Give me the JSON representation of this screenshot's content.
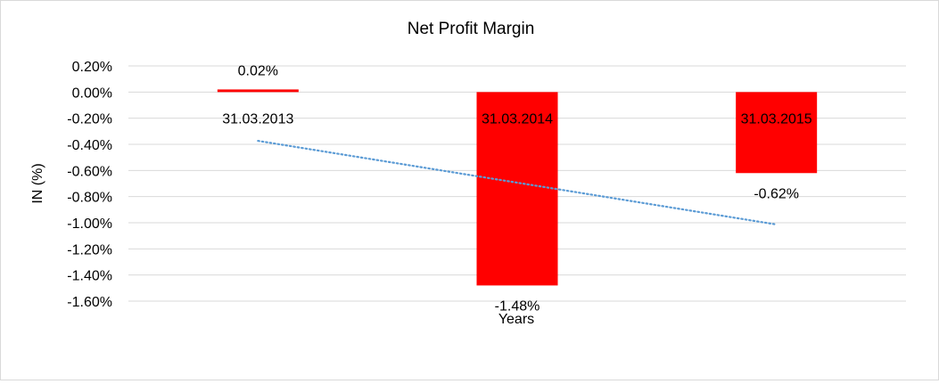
{
  "chart_data": {
    "type": "bar",
    "title": "Net Profit Margin",
    "xlabel": "Years",
    "ylabel": "IN (%)",
    "categories": [
      "31.03.2013",
      "31.03.2014",
      "31.03.2015"
    ],
    "values": [
      0.02,
      -1.48,
      -0.62
    ],
    "value_labels": [
      "0.02%",
      "-1.48%",
      "-0.62%"
    ],
    "ylim": [
      -1.6,
      0.2
    ],
    "yticks": [
      0.2,
      0.0,
      -0.2,
      -0.4,
      -0.6,
      -0.8,
      -1.0,
      -1.2,
      -1.4,
      -1.6
    ],
    "ytick_labels": [
      "0.20%",
      "0.00%",
      "-0.20%",
      "-0.40%",
      "-0.60%",
      "-0.80%",
      "-1.00%",
      "-1.20%",
      "-1.40%",
      "-1.60%"
    ],
    "grid": true,
    "bar_color": "#ff0000",
    "trendline": {
      "type": "linear",
      "style": "dotted",
      "color": "#5b9bd5"
    }
  }
}
